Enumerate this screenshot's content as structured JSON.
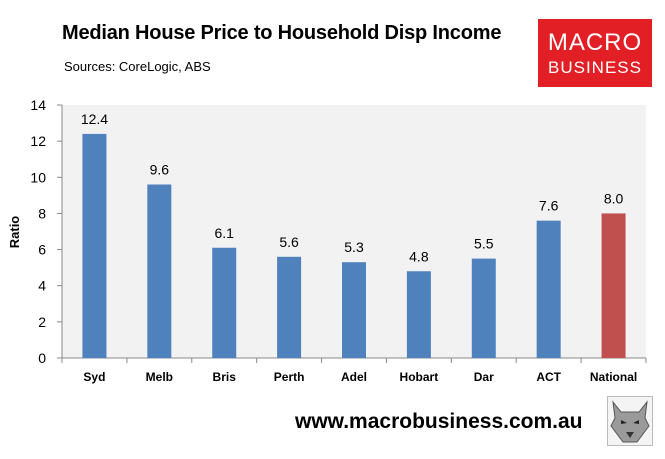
{
  "header": {
    "title": "Median House Price to Household Disp Income",
    "subtitle": "Sources: CoreLogic, ABS"
  },
  "logo": {
    "line1": "MACRO",
    "line2": "BUSINESS"
  },
  "footer": {
    "url": "www.macrobusiness.com.au"
  },
  "colors": {
    "bar": "#4f81bd",
    "highlight": "#c0504d",
    "plot_bg": "#f2f2f2",
    "brand": "#e31f26"
  },
  "icons": {
    "wolf": "wolf-logo-icon"
  },
  "chart_data": {
    "type": "bar",
    "title": "Median House Price to Household Disp Income",
    "xlabel": "",
    "ylabel": "Ratio",
    "ylim": [
      0,
      14
    ],
    "yticks": [
      0,
      2,
      4,
      6,
      8,
      10,
      12,
      14
    ],
    "grid": false,
    "categories": [
      "Syd",
      "Melb",
      "Bris",
      "Perth",
      "Adel",
      "Hobart",
      "Dar",
      "ACT",
      "National"
    ],
    "values": [
      12.4,
      9.6,
      6.1,
      5.6,
      5.3,
      4.8,
      5.5,
      7.6,
      8.0
    ],
    "labels": [
      "12.4",
      "9.6",
      "6.1",
      "5.6",
      "5.3",
      "4.8",
      "5.5",
      "7.6",
      "8.0"
    ],
    "highlight": [
      "National"
    ]
  }
}
